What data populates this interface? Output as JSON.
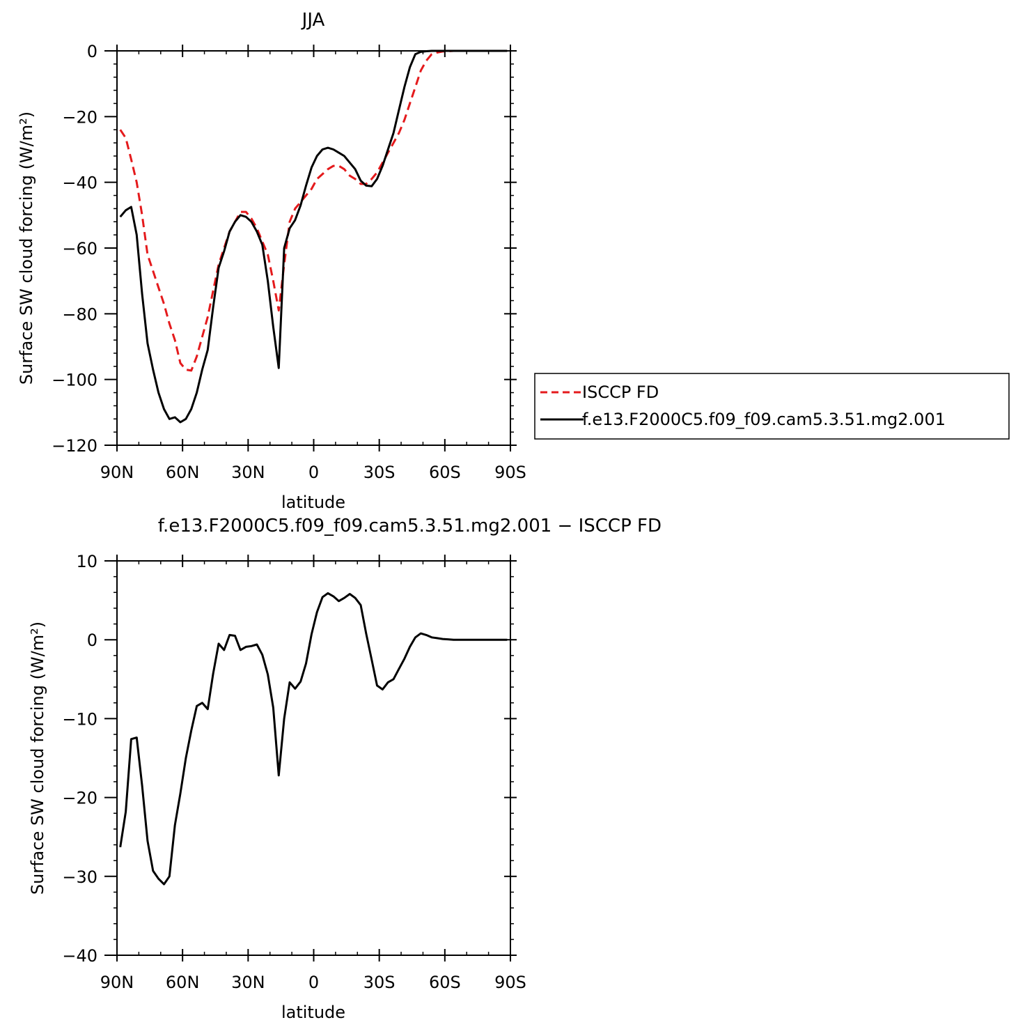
{
  "chart_data": [
    {
      "type": "line",
      "title": "JJA",
      "xlabel": "latitude",
      "ylabel": "Surface SW cloud forcing (W/m²)",
      "xlim": [
        -90,
        90
      ],
      "ylim": [
        -120,
        0
      ],
      "xticks": [
        -90,
        -60,
        -30,
        0,
        30,
        60,
        90
      ],
      "xtick_labels": [
        "90N",
        "60N",
        "30N",
        "0",
        "30S",
        "60S",
        "90S"
      ],
      "yticks": [
        0,
        -20,
        -40,
        -60,
        -80,
        -100,
        -120
      ],
      "ytick_labels": [
        "0",
        "−20",
        "−40",
        "−60",
        "−80",
        "−100",
        "−120"
      ],
      "grid": false,
      "legend_position": "right, outside plot",
      "series": [
        {
          "name": "ISCCP FD",
          "color": "#e41a1c",
          "dash": "dashed",
          "x": [
            -88.5,
            -86,
            -83.5,
            -81,
            -78.5,
            -76,
            -73.5,
            -71,
            -68.5,
            -66,
            -63.5,
            -61,
            -58.5,
            -56,
            -53.5,
            -51,
            -48.5,
            -46,
            -43.5,
            -41,
            -38.5,
            -36,
            -33.5,
            -31,
            -28.5,
            -26,
            -23.5,
            -21,
            -18.5,
            -16,
            -13.5,
            -11,
            -8.5,
            -6,
            -3.5,
            -1,
            1.5,
            4,
            6.5,
            9,
            11.5,
            14,
            16.5,
            19,
            21.5,
            24,
            26.5,
            29,
            31.5,
            34,
            36.5,
            39,
            41.5,
            44,
            46.5,
            49,
            51.5,
            54,
            56.5,
            59,
            61.5,
            64,
            66.5,
            69,
            71.5,
            74,
            76.5,
            79,
            81.5,
            84,
            86.5,
            88.5
          ],
          "y": [
            -24,
            -26.5,
            -33,
            -40,
            -50,
            -62,
            -67,
            -72,
            -77,
            -83,
            -88,
            -95,
            -97,
            -97.3,
            -93,
            -87,
            -81,
            -73,
            -65,
            -60,
            -55,
            -52,
            -49,
            -49,
            -51,
            -54,
            -58,
            -62,
            -70,
            -79,
            -65,
            -52,
            -48,
            -46,
            -44,
            -42,
            -39,
            -37.5,
            -36,
            -35,
            -35,
            -36,
            -38,
            -39,
            -40.5,
            -40.5,
            -39,
            -37,
            -34,
            -31,
            -28,
            -25,
            -21,
            -16,
            -11,
            -6,
            -3,
            -1,
            -0.5,
            -0.2,
            -0.1,
            0,
            0,
            0,
            0,
            0,
            0,
            0,
            0,
            0,
            0,
            0
          ]
        },
        {
          "name": "f.e13.F2000C5.f09_f09.cam5.3.51.mg2.001",
          "color": "#000000",
          "dash": "solid",
          "x": [
            -88.5,
            -86,
            -83.5,
            -81,
            -78.5,
            -76,
            -73.5,
            -71,
            -68.5,
            -66,
            -63.5,
            -61,
            -58.5,
            -56,
            -53.5,
            -51,
            -48.5,
            -46,
            -43.5,
            -41,
            -38.5,
            -36,
            -33.5,
            -31,
            -28.5,
            -26,
            -23.5,
            -21,
            -18.5,
            -16,
            -13.5,
            -11,
            -8.5,
            -6,
            -3.5,
            -1,
            1.5,
            4,
            6.5,
            9,
            11.5,
            14,
            16.5,
            19,
            21.5,
            24,
            26.5,
            29,
            31.5,
            34,
            36.5,
            39,
            41.5,
            44,
            46.5,
            49,
            51.5,
            54,
            56.5,
            59,
            61.5,
            64,
            66.5,
            69,
            71.5,
            74,
            76.5,
            79,
            81.5,
            84,
            86.5,
            88.5
          ],
          "y": [
            -50.5,
            -48.5,
            -47.5,
            -56,
            -74,
            -89,
            -97,
            -104,
            -109,
            -112,
            -111.5,
            -113,
            -112,
            -109,
            -104,
            -97,
            -91,
            -78,
            -66,
            -61,
            -55,
            -52,
            -50,
            -50.5,
            -52,
            -55,
            -59,
            -70,
            -84,
            -96.5,
            -60,
            -54,
            -51.5,
            -47,
            -41,
            -35.5,
            -32,
            -30,
            -29.5,
            -30,
            -31,
            -32,
            -34,
            -36,
            -39.5,
            -41,
            -41.2,
            -39,
            -35,
            -30,
            -25,
            -18,
            -11,
            -5,
            -1,
            -0.3,
            -0.1,
            0,
            0,
            0,
            0,
            0,
            0,
            0,
            0,
            0,
            0,
            0,
            0,
            0,
            0,
            0
          ]
        }
      ]
    },
    {
      "type": "line",
      "title": "f.e13.F2000C5.f09_f09.cam5.3.51.mg2.001 − ISCCP FD",
      "xlabel": "latitude",
      "ylabel": "Surface SW cloud forcing (W/m²)",
      "xlim": [
        -90,
        90
      ],
      "ylim": [
        -40,
        10
      ],
      "xticks": [
        -90,
        -60,
        -30,
        0,
        30,
        60,
        90
      ],
      "xtick_labels": [
        "90N",
        "60N",
        "30N",
        "0",
        "30S",
        "60S",
        "90S"
      ],
      "yticks": [
        10,
        0,
        -10,
        -20,
        -30,
        -40
      ],
      "ytick_labels": [
        "10",
        "0",
        "−10",
        "−20",
        "−30",
        "−40"
      ],
      "grid": false,
      "series": [
        {
          "color": "#000000",
          "dash": "solid",
          "x": [
            -88.5,
            -86,
            -83.5,
            -81,
            -78.5,
            -76,
            -73.5,
            -71,
            -68.5,
            -66,
            -63.5,
            -61,
            -58.5,
            -56,
            -53.5,
            -51,
            -48.5,
            -46,
            -43.5,
            -41,
            -38.5,
            -36,
            -33.5,
            -31,
            -28.5,
            -26,
            -23.5,
            -21,
            -18.5,
            -16,
            -13.5,
            -11,
            -8.5,
            -6,
            -3.5,
            -1,
            1.5,
            4,
            6.5,
            9,
            11.5,
            14,
            16.5,
            19,
            21.5,
            24,
            26.5,
            29,
            31.5,
            34,
            36.5,
            39,
            41.5,
            44,
            46.5,
            49,
            51.5,
            54,
            56.5,
            59,
            61.5,
            64,
            66.5,
            69,
            71.5,
            74,
            76.5,
            79,
            81.5,
            84,
            86.5,
            88.5
          ],
          "y": [
            -26.3,
            -21.8,
            -12.6,
            -12.4,
            -18.5,
            -25.5,
            -29.3,
            -30.3,
            -31,
            -30,
            -23.5,
            -19.5,
            -15,
            -11.5,
            -8.4,
            -8,
            -8.8,
            -4.3,
            -0.5,
            -1.3,
            0.6,
            0.5,
            -1.3,
            -0.9,
            -0.8,
            -0.6,
            -1.9,
            -4.4,
            -8.6,
            -17.2,
            -10,
            -5.4,
            -6.2,
            -5.3,
            -3,
            0.7,
            3.5,
            5.4,
            5.9,
            5.5,
            4.9,
            5.3,
            5.8,
            5.3,
            4.4,
            0.8,
            -2.5,
            -5.8,
            -6.3,
            -5.4,
            -5,
            -3.7,
            -2.4,
            -0.9,
            0.3,
            0.8,
            0.6,
            0.3,
            0.2,
            0.1,
            0.05,
            0,
            0,
            0,
            0,
            0,
            0,
            0,
            0,
            0,
            0,
            0
          ]
        }
      ]
    }
  ]
}
